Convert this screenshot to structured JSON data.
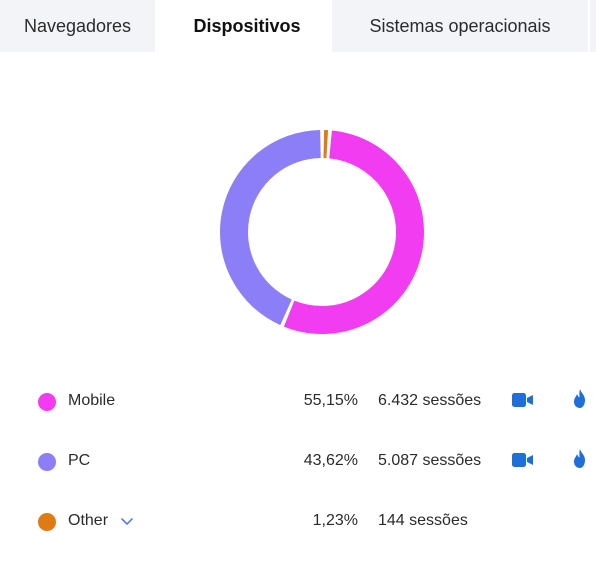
{
  "tabs": [
    {
      "label": "Navegadores",
      "active": false
    },
    {
      "label": "Dispositivos",
      "active": true
    },
    {
      "label": "Sistemas operacionais",
      "active": false
    }
  ],
  "colors": {
    "mobile": "#f23cf2",
    "pc": "#8c7ef7",
    "other": "#e07b12",
    "icon_blue": "#1e6fd9"
  },
  "chart_data": {
    "type": "pie",
    "donut": true,
    "categories": [
      "Mobile",
      "PC",
      "Other"
    ],
    "values": [
      55.15,
      43.62,
      1.23
    ],
    "colors": [
      "#f23cf2",
      "#8c7ef7",
      "#e07b12"
    ]
  },
  "legend": [
    {
      "name": "Mobile",
      "percent": "55,15%",
      "sessions": "6.432 sessões",
      "icons": [
        "video-camera-icon",
        "flame-icon"
      ]
    },
    {
      "name": "PC",
      "percent": "43,62%",
      "sessions": "5.087 sessões",
      "icons": [
        "video-camera-icon",
        "flame-icon"
      ]
    },
    {
      "name": "Other",
      "percent": "1,23%",
      "sessions": "144 sessões",
      "icons": []
    }
  ]
}
